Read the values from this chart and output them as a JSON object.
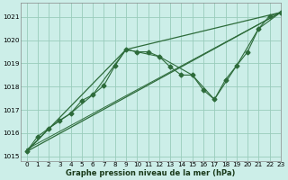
{
  "title": "Graphe pression niveau de la mer (hPa)",
  "bg_color": "#cceee8",
  "grid_color": "#99ccbb",
  "line_color": "#2d6b3a",
  "xlim": [
    -0.5,
    23
  ],
  "ylim": [
    1014.8,
    1021.6
  ],
  "yticks": [
    1015,
    1016,
    1017,
    1018,
    1019,
    1020,
    1021
  ],
  "xticks": [
    0,
    1,
    2,
    3,
    4,
    5,
    6,
    7,
    8,
    9,
    10,
    11,
    12,
    13,
    14,
    15,
    16,
    17,
    18,
    19,
    20,
    21,
    22,
    23
  ],
  "series": [
    {
      "x": [
        0,
        1,
        2,
        3,
        4,
        5,
        6,
        7,
        8,
        9,
        10,
        11,
        12,
        13,
        14,
        15,
        16,
        17,
        18,
        19,
        20,
        21,
        22,
        23
      ],
      "y": [
        1015.2,
        1015.85,
        1016.2,
        1016.55,
        1016.85,
        1017.4,
        1017.65,
        1018.05,
        1018.9,
        1019.6,
        1019.5,
        1019.5,
        1019.3,
        1018.85,
        1018.5,
        1018.5,
        1017.85,
        1017.45,
        1018.3,
        1018.9,
        1019.5,
        1020.5,
        1021.05,
        1021.2
      ]
    },
    {
      "x": [
        0,
        23
      ],
      "y": [
        1015.2,
        1021.2
      ]
    },
    {
      "x": [
        0,
        23
      ],
      "y": [
        1015.3,
        1021.2
      ]
    },
    {
      "x": [
        0,
        2,
        4,
        6,
        9,
        12,
        15,
        17,
        19,
        21,
        23
      ],
      "y": [
        1015.2,
        1016.2,
        1016.85,
        1017.65,
        1019.6,
        1019.3,
        1018.5,
        1017.45,
        1018.9,
        1020.5,
        1021.2
      ]
    },
    {
      "x": [
        0,
        9,
        23
      ],
      "y": [
        1015.2,
        1019.6,
        1021.2
      ]
    }
  ]
}
